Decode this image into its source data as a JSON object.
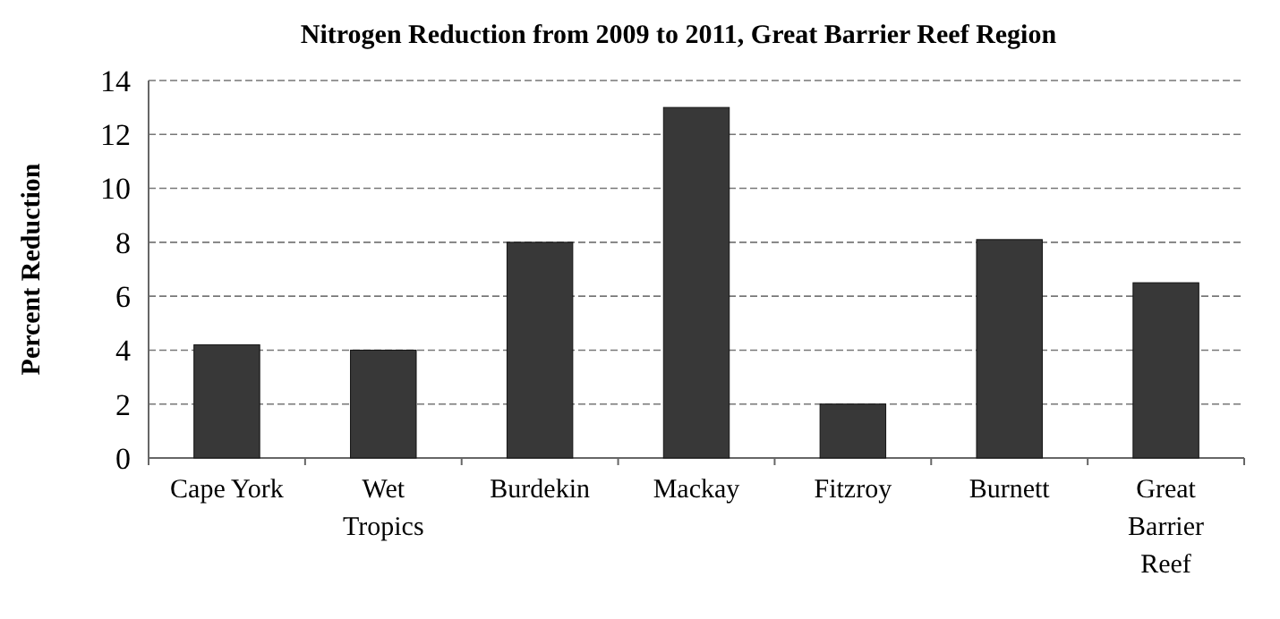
{
  "chart_data": {
    "type": "bar",
    "title": "Nitrogen Reduction from 2009 to 2011, Great Barrier Reef Region",
    "ylabel": "Percent Reduction",
    "categories": [
      "Cape York",
      "Wet Tropics",
      "Burdekin",
      "Mackay",
      "Fitzroy",
      "Burnett",
      "Great Barrier Reef"
    ],
    "values": [
      4.2,
      4.0,
      8.0,
      13.0,
      2.0,
      8.1,
      6.5
    ],
    "color": "#383838",
    "ylim": [
      0,
      14
    ],
    "yticks": [
      0,
      2,
      4,
      6,
      8,
      10,
      12,
      14
    ],
    "grid": "y"
  }
}
